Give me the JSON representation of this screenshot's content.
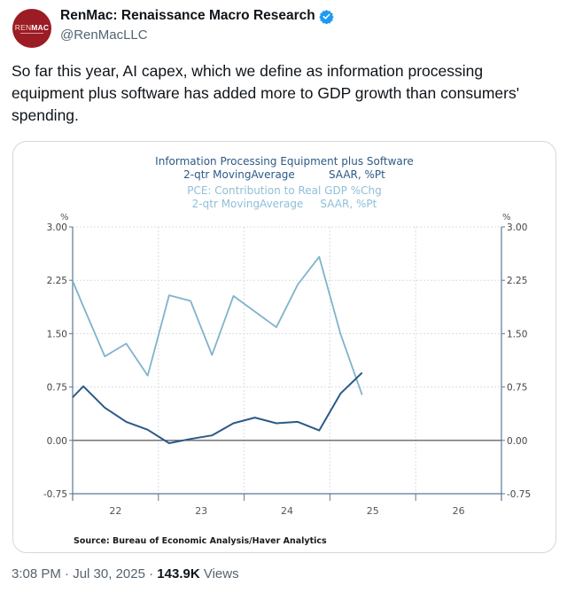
{
  "tweet": {
    "display_name": "RenMac: Renaissance Macro Research",
    "handle": "@RenMacLLC",
    "avatar_text_light": "REN",
    "avatar_text_bold": "MAC",
    "verified_icon": "verified-badge-icon",
    "text": "So far this year, AI capex, which we define as information processing equipment plus software has added more to GDP growth than consumers' spending.",
    "time": "3:08 PM",
    "separator": "·",
    "date": "Jul 30, 2025",
    "views_count": "143.9K",
    "views_label": "Views",
    "colors": {
      "avatar_bg": "#9b1c24",
      "verified": "#1d9bf0"
    }
  },
  "chart_data": {
    "type": "line",
    "title_lines": [
      {
        "text": "Information Processing Equipment plus Software",
        "series": 0
      },
      {
        "text": "2-qtr MovingAverage          SAAR, %Pt",
        "series": 0
      },
      {
        "text": "PCE: Contribution to Real GDP %Chg",
        "series": 1
      },
      {
        "text": "2-qtr MovingAverage     SAAR, %Pt",
        "series": 1
      }
    ],
    "left_unit": "%",
    "right_unit": "%",
    "ylim": [
      -0.75,
      3.0
    ],
    "yticks": [
      3.0,
      2.25,
      1.5,
      0.75,
      0.0,
      -0.75
    ],
    "ytick_labels": [
      "3.00",
      "2.25",
      "1.50",
      "0.75",
      "0.00",
      "-0.75"
    ],
    "xlim": [
      2022.0,
      2027.0
    ],
    "xtick_labels": [
      "22",
      "23",
      "24",
      "25",
      "26"
    ],
    "x_label_positions": [
      2022.5,
      2023.5,
      2024.5,
      2025.5,
      2026.5
    ],
    "grid": true,
    "source": "Source:  Bureau of Economic Analysis/Haver Analytics",
    "x": [
      "2021Q4",
      "2022Q1",
      "2022Q2",
      "2022Q3",
      "2022Q4",
      "2023Q1",
      "2023Q2",
      "2023Q3",
      "2023Q4",
      "2024Q1",
      "2024Q2",
      "2024Q3",
      "2024Q4",
      "2025Q1",
      "2025Q2"
    ],
    "x_numeric": [
      2021.875,
      2022.125,
      2022.375,
      2022.625,
      2022.875,
      2023.125,
      2023.375,
      2023.625,
      2023.875,
      2024.125,
      2024.375,
      2024.625,
      2024.875,
      2025.125,
      2025.375
    ],
    "series": [
      {
        "name": "Information Processing Equipment plus Software, 2-qtr MovingAverage SAAR, %Pt",
        "color": "#2b5a86",
        "values": [
          0.45,
          0.76,
          0.46,
          0.26,
          0.15,
          -0.04,
          0.02,
          0.07,
          0.24,
          0.32,
          0.24,
          0.26,
          0.14,
          0.66,
          0.95
        ]
      },
      {
        "name": "PCE: Contribution to Real GDP %Chg, 2-qtr MovingAverage SAAR, %Pt",
        "color": "#7fb3cc",
        "values": [
          2.6,
          1.88,
          1.18,
          1.36,
          0.91,
          2.04,
          1.96,
          1.2,
          2.03,
          1.81,
          1.59,
          2.19,
          2.58,
          1.49,
          0.64
        ]
      }
    ]
  }
}
